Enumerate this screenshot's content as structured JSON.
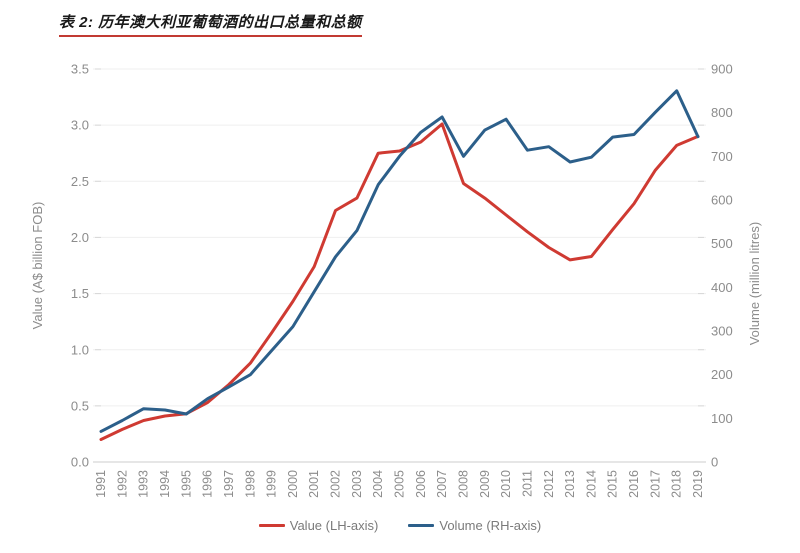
{
  "header": {
    "title": "表 2: 历年澳大利亚葡萄酒的出口总量和总额"
  },
  "colors": {
    "value_series": "#cf3a32",
    "volume_series": "#2c5f8a",
    "title_underline": "#c23a32",
    "grid_line": "#efefef",
    "axis_line": "#d7d7d7",
    "tick_text": "#8c8c8c",
    "legend_text": "#7a7a7a"
  },
  "chart_data": {
    "type": "line",
    "title": "表 2: 历年澳大利亚葡萄酒的出口总量和总额",
    "categories": [
      "1991",
      "1992",
      "1993",
      "1994",
      "1995",
      "1996",
      "1997",
      "1998",
      "1999",
      "2000",
      "2001",
      "2002",
      "2003",
      "2004",
      "2005",
      "2006",
      "2007",
      "2008",
      "2009",
      "2010",
      "2011",
      "2012",
      "2013",
      "2014",
      "2015",
      "2016",
      "2017",
      "2018",
      "2019"
    ],
    "series": [
      {
        "name": "Value (LH-axis)",
        "axis": "left",
        "color": "#cf3a32",
        "values": [
          0.2,
          0.29,
          0.37,
          0.41,
          0.43,
          0.53,
          0.69,
          0.88,
          1.15,
          1.43,
          1.74,
          2.24,
          2.35,
          2.75,
          2.77,
          2.85,
          3.01,
          2.48,
          2.35,
          2.2,
          2.05,
          1.91,
          1.8,
          1.83,
          2.07,
          2.3,
          2.6,
          2.82,
          2.9
        ]
      },
      {
        "name": "Volume (RH-axis)",
        "axis": "right",
        "color": "#2c5f8a",
        "values": [
          70,
          95,
          122,
          119,
          110,
          145,
          172,
          200,
          255,
          310,
          390,
          470,
          530,
          635,
          700,
          755,
          790,
          700,
          760,
          785,
          714,
          722,
          687,
          698,
          744,
          750,
          801,
          850,
          745
        ]
      }
    ],
    "left_axis": {
      "label": "Value (A$ billion FOB)",
      "min": 0,
      "max": 3.5,
      "step": 0.5,
      "decimals": 1
    },
    "right_axis": {
      "label": "Volume (million litres)",
      "min": 0,
      "max": 900,
      "step": 100,
      "decimals": 0
    },
    "grid": true,
    "legend_position": "bottom"
  }
}
